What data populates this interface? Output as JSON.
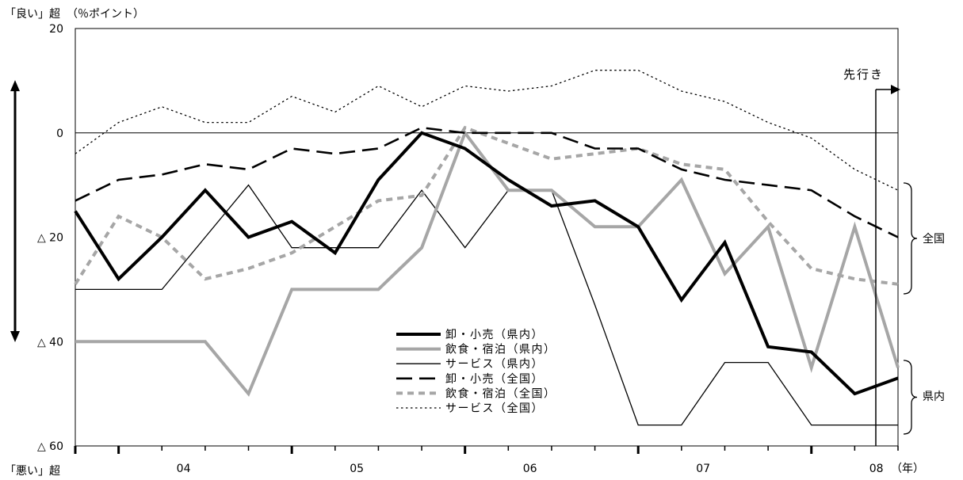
{
  "chart_data": {
    "type": "line",
    "top_axis_label": "「良い」超",
    "unit_label": "（％ポイント）",
    "bottom_axis_label": "「悪い」超",
    "x_unit_label": "（年）",
    "forecast_label": "先行き",
    "y_ticks": [
      {
        "value": 20,
        "label": "20"
      },
      {
        "value": 0,
        "label": "0"
      },
      {
        "value": -20,
        "label": "△ 20"
      },
      {
        "value": -40,
        "label": "△ 40"
      },
      {
        "value": -60,
        "label": "△ 60"
      }
    ],
    "ylim": [
      -60,
      20
    ],
    "year_labels": [
      {
        "x": 2.5,
        "label": "04"
      },
      {
        "x": 6.5,
        "label": "05"
      },
      {
        "x": 10.5,
        "label": "06"
      },
      {
        "x": 14.5,
        "label": "07"
      },
      {
        "x": 18.5,
        "label": "08"
      }
    ],
    "group_labels": {
      "national": "全国",
      "prefecture": "県内"
    },
    "series": [
      {
        "name": "卸・小売（県内）",
        "color": "#000000",
        "style": "thick-solid",
        "values": [
          -15,
          -28,
          -20,
          -11,
          -20,
          -17,
          -23,
          -9,
          0,
          -3,
          -9,
          -14,
          -13,
          -18,
          -32,
          -21,
          -41,
          -42,
          -50,
          -47
        ]
      },
      {
        "name": "飲食・宿泊（県内）",
        "color": "#a6a6a6",
        "style": "thick-solid",
        "values": [
          -40,
          -40,
          -40,
          -40,
          -50,
          -30,
          -30,
          -30,
          -22,
          0,
          -11,
          -11,
          -18,
          -18,
          -9,
          -27,
          -18,
          -45,
          -18,
          -45
        ]
      },
      {
        "name": "サービス（県内）",
        "color": "#000000",
        "style": "thin-solid",
        "values": [
          -30,
          -30,
          -30,
          -20,
          -10,
          -22,
          -22,
          -22,
          -11,
          -22,
          -11,
          -11,
          -33,
          -56,
          -56,
          -44,
          -44,
          -56,
          -56,
          -56
        ]
      },
      {
        "name": "卸・小売（全国）",
        "color": "#000000",
        "style": "long-dash",
        "values": [
          -13,
          -9,
          -8,
          -6,
          -7,
          -3,
          -4,
          -3,
          1,
          0,
          0,
          0,
          -3,
          -3,
          -7,
          -9,
          -10,
          -11,
          -16,
          -20
        ]
      },
      {
        "name": "飲食・宿泊（全国）",
        "color": "#a6a6a6",
        "style": "short-dash",
        "values": [
          -29,
          -16,
          -20,
          -28,
          -26,
          -23,
          -18,
          -13,
          -12,
          1,
          -2,
          -5,
          -4,
          -3,
          -6,
          -7,
          -17,
          -26,
          -28,
          -29
        ]
      },
      {
        "name": "サービス（全国）",
        "color": "#000000",
        "style": "dotted",
        "values": [
          -4,
          2,
          5,
          2,
          2,
          7,
          4,
          9,
          5,
          9,
          8,
          9,
          12,
          12,
          8,
          6,
          2,
          -1,
          -7,
          -11
        ]
      }
    ]
  }
}
